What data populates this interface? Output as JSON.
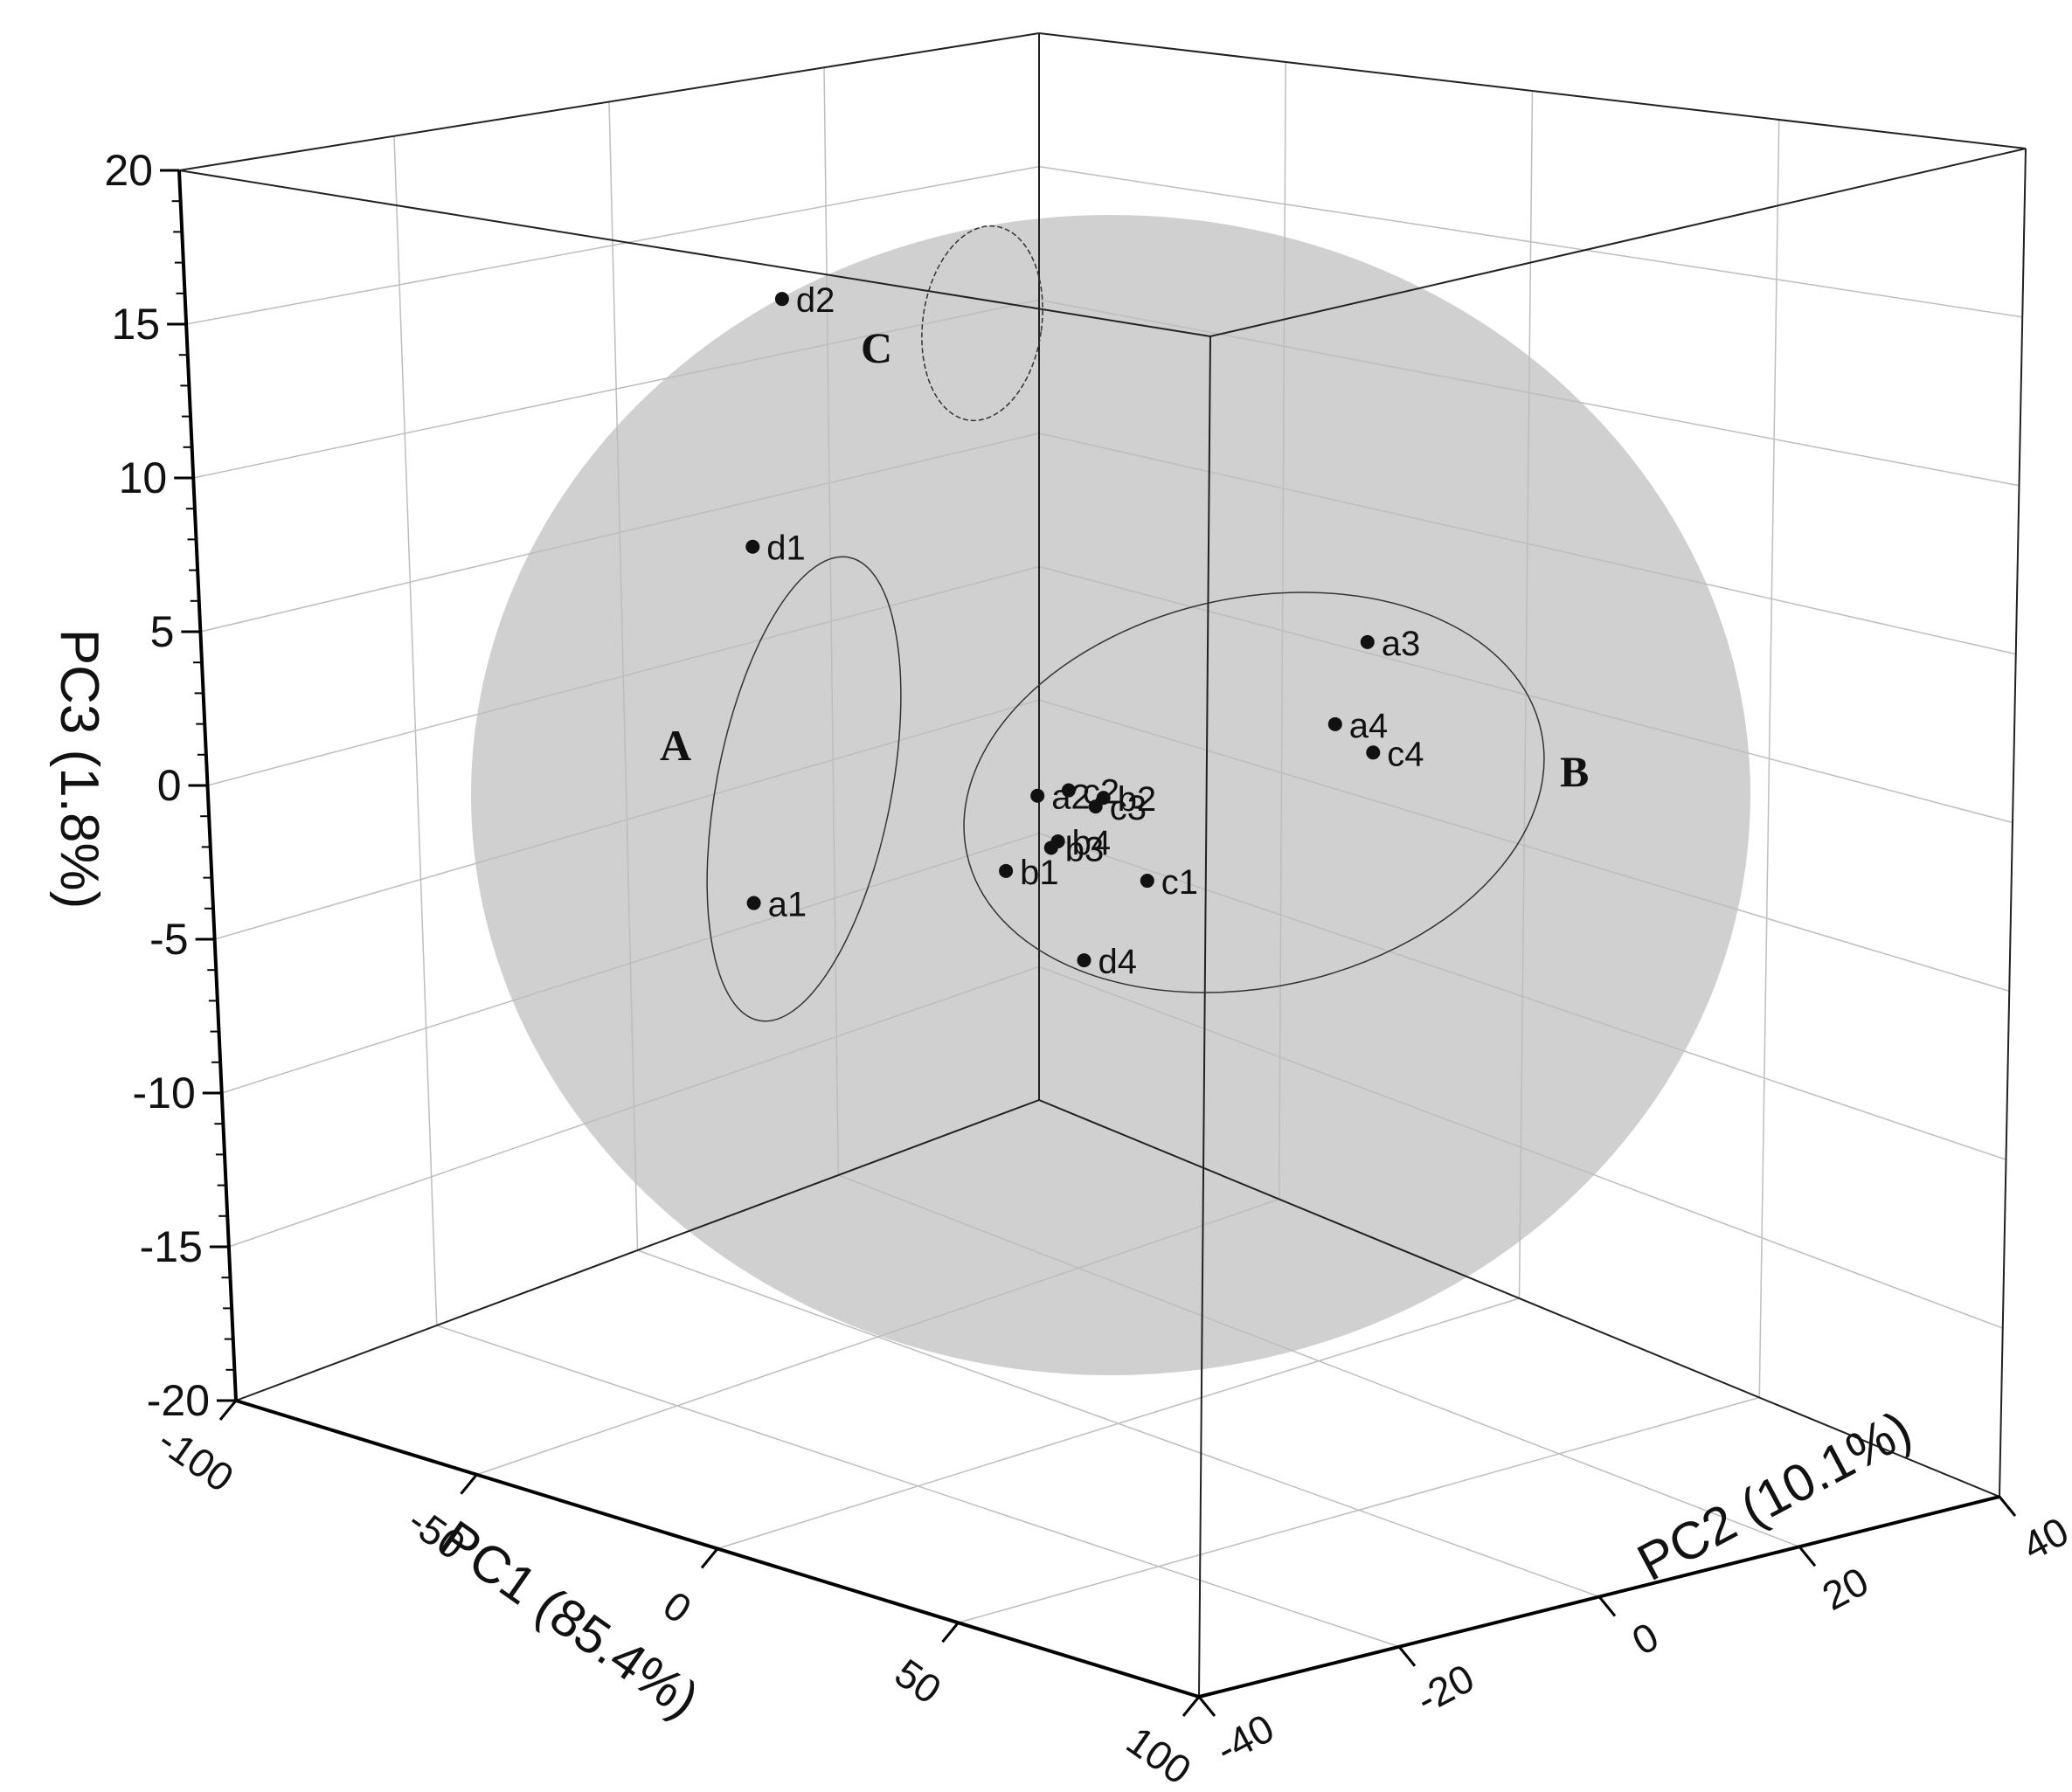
{
  "chart_data": {
    "type": "scatter",
    "title": "",
    "x_axis": {
      "label": "PC1 (85.4%)",
      "range": [
        -100,
        100
      ],
      "ticks": [
        -100,
        -50,
        0,
        50,
        100
      ],
      "tick_labels": [
        "-100",
        "-50",
        "0",
        "50",
        "100"
      ]
    },
    "y_axis": {
      "label": "PC2 (10.1%)",
      "range": [
        -40,
        40
      ],
      "ticks": [
        -40,
        -20,
        0,
        20,
        40
      ],
      "tick_labels": [
        "-40",
        "-20",
        "0",
        "20",
        "40"
      ]
    },
    "z_axis": {
      "label": "PC3 (1.8%)",
      "range": [
        -20,
        20
      ],
      "ticks": [
        -20,
        -15,
        -10,
        -5,
        0,
        5,
        10,
        15,
        20
      ],
      "tick_labels": [
        "-20",
        "-15",
        "-10",
        "-5",
        "0",
        "5",
        "10",
        "15",
        "20"
      ]
    },
    "grid": true,
    "points": [
      {
        "label": "d2",
        "x": -45,
        "y": -38,
        "z": 16.3
      },
      {
        "label": "d1",
        "x": -92,
        "y": 5,
        "z": 6.4
      },
      {
        "label": "a1",
        "x": -98,
        "y": 12,
        "z": -5.4
      },
      {
        "label": "a3",
        "x": 48,
        "y": 40,
        "z": 4.8
      },
      {
        "label": "a4",
        "x": 48,
        "y": 30,
        "z": 2.4
      },
      {
        "label": "c4",
        "x": 55,
        "y": 34,
        "z": 1.5
      },
      {
        "label": "a2",
        "x": -8,
        "y": 0,
        "z": -0.1
      },
      {
        "label": "c2",
        "x": -2,
        "y": 3,
        "z": 0.1
      },
      {
        "label": "b2",
        "x": 5,
        "y": 6,
        "z": -0.1
      },
      {
        "label": "c3",
        "x": 1,
        "y": 8,
        "z": -0.5
      },
      {
        "label": "b4",
        "x": -5,
        "y": 3,
        "z": -1.6
      },
      {
        "label": "b3",
        "x": -6,
        "y": 2,
        "z": -1.8
      },
      {
        "label": "b1",
        "x": -15,
        "y": -2,
        "z": -2.6
      },
      {
        "label": "c1",
        "x": 10,
        "y": 14,
        "z": -2.9
      },
      {
        "label": "d4",
        "x": 5,
        "y": 0,
        "z": -5.2
      }
    ],
    "groups": [
      {
        "label": "A"
      },
      {
        "label": "B"
      },
      {
        "label": "C"
      }
    ],
    "sphere_color": "#c8c8c8",
    "point_color": "#111111"
  }
}
